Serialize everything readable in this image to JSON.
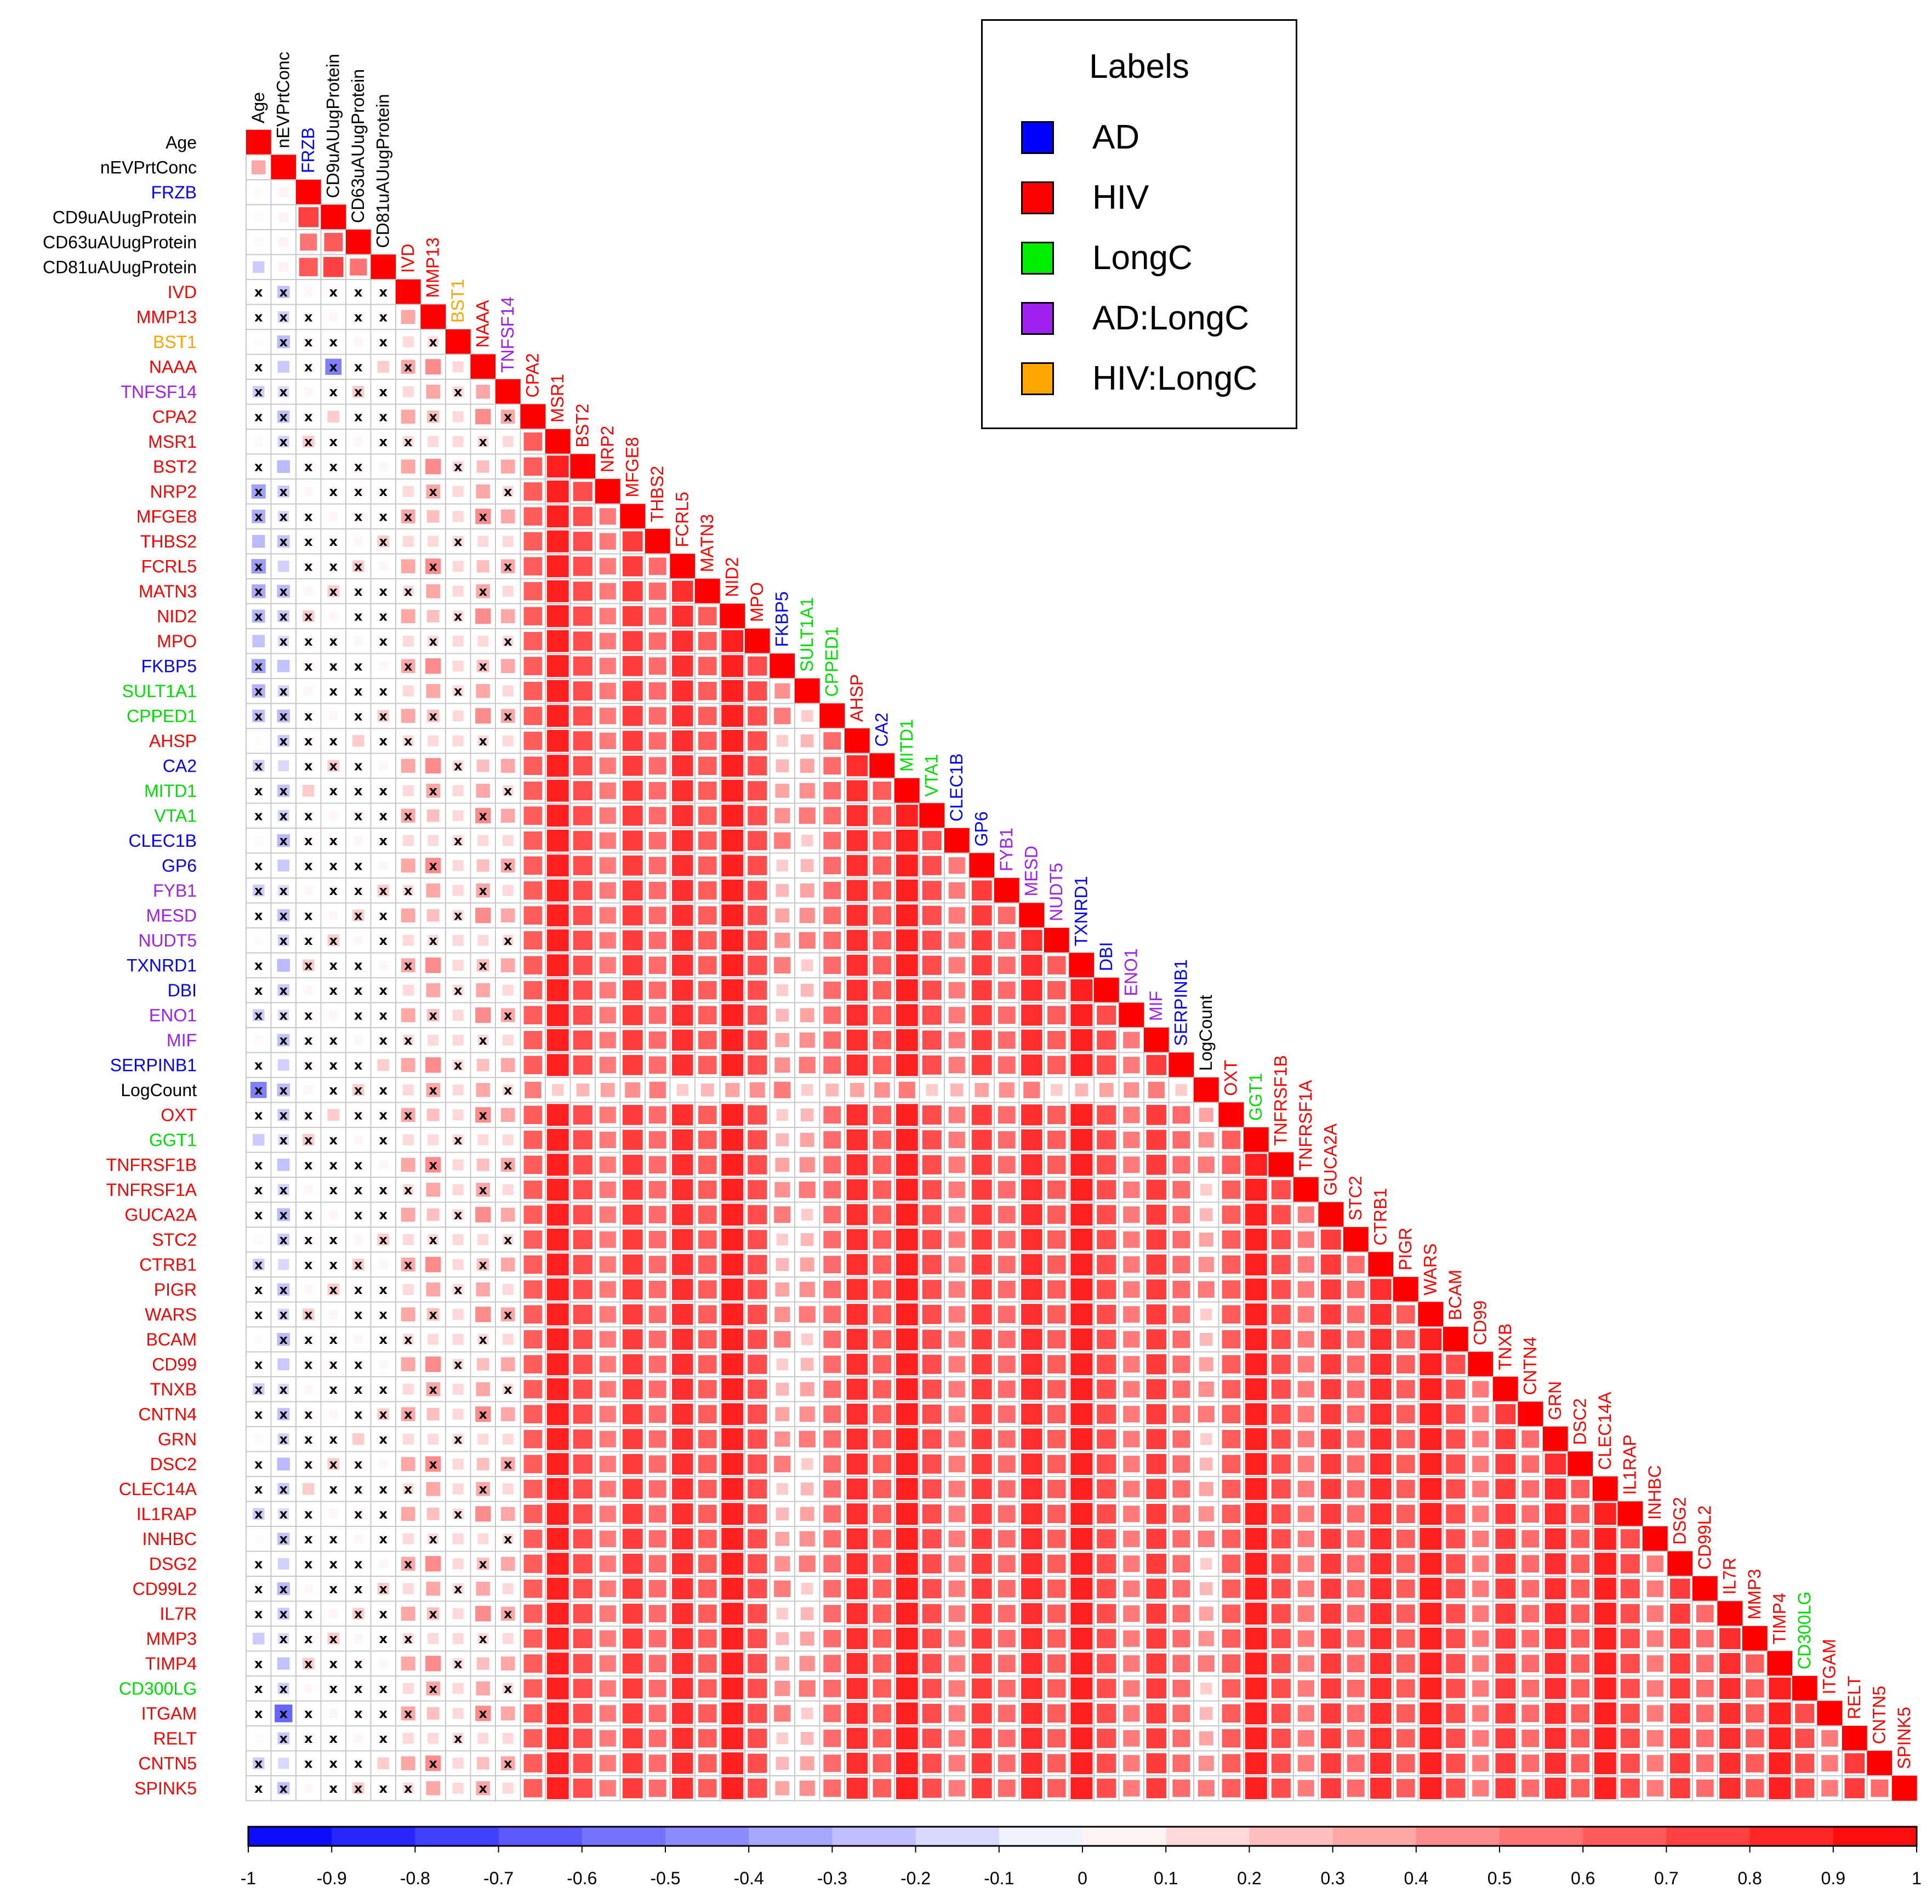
{
  "chart_data": {
    "type": "heatmap",
    "subtype": "lower-triangle correlation matrix",
    "variables": [
      "Age",
      "nEVPrtConc",
      "FRZB",
      "CD9uAUugProtein",
      "CD63uAUugProtein",
      "CD81uAUugProtein",
      "IVD",
      "MMP13",
      "BST1",
      "NAAA",
      "TNFSF14",
      "CPA2",
      "MSR1",
      "BST2",
      "NRP2",
      "MFGE8",
      "THBS2",
      "FCRL5",
      "MATN3",
      "NID2",
      "MPO",
      "FKBP5",
      "SULT1A1",
      "CPPED1",
      "AHSP",
      "CA2",
      "MITD1",
      "VTA1",
      "CLEC1B",
      "GP6",
      "FYB1",
      "MESD",
      "NUDT5",
      "TXNRD1",
      "DBI",
      "ENO1",
      "MIF",
      "SERPINB1",
      "LogCount",
      "OXT",
      "GGT1",
      "TNFRSF1B",
      "TNFRSF1A",
      "GUCA2A",
      "STC2",
      "CTRB1",
      "PIGR",
      "WARS",
      "BCAM",
      "CD99",
      "TNXB",
      "CNTN4",
      "GRN",
      "DSC2",
      "CLEC14A",
      "IL1RAP",
      "INHBC",
      "DSG2",
      "CD99L2",
      "IL7R",
      "MMP3",
      "TIMP4",
      "CD300LG",
      "ITGAM",
      "RELT",
      "CNTN5",
      "SPINK5"
    ],
    "variable_groups": [
      "none",
      "none",
      "AD",
      "none",
      "none",
      "none",
      "HIV",
      "HIV",
      "HIV:LongC",
      "HIV",
      "AD:LongC",
      "HIV",
      "HIV",
      "HIV",
      "HIV",
      "HIV",
      "HIV",
      "HIV",
      "HIV",
      "HIV",
      "HIV",
      "AD",
      "LongC",
      "LongC",
      "HIV",
      "AD",
      "LongC",
      "LongC",
      "AD",
      "AD",
      "AD:LongC",
      "AD:LongC",
      "AD:LongC",
      "AD",
      "AD",
      "AD:LongC",
      "AD:LongC",
      "AD",
      "none",
      "HIV",
      "LongC",
      "HIV",
      "HIV",
      "HIV",
      "HIV",
      "HIV",
      "HIV",
      "HIV",
      "HIV",
      "HIV",
      "HIV",
      "HIV",
      "HIV",
      "HIV",
      "HIV",
      "HIV",
      "HIV",
      "HIV",
      "HIV",
      "HIV",
      "HIV",
      "HIV",
      "LongC",
      "HIV",
      "HIV",
      "HIV",
      "HIV"
    ],
    "colorbar": {
      "min": -1,
      "max": 1,
      "ticks": [
        "-1",
        "-0.9",
        "-0.8",
        "-0.7",
        "-0.6",
        "-0.5",
        "-0.4",
        "-0.3",
        "-0.2",
        "-0.1",
        "0",
        "0.1",
        "0.2",
        "0.3",
        "0.4",
        "0.5",
        "0.6",
        "0.7",
        "0.8",
        "0.9",
        "1"
      ],
      "low_color": "#0000ff",
      "mid_color": "#ffffff",
      "high_color": "#ff0000"
    },
    "legend": {
      "title": "Labels",
      "placement": "top-right",
      "items": [
        {
          "label": "AD",
          "color": "#0000ff"
        },
        {
          "label": "HIV",
          "color": "#ff0000"
        },
        {
          "label": "LongC",
          "color": "#00ee00"
        },
        {
          "label": "AD:LongC",
          "color": "#a020f0"
        },
        {
          "label": "HIV:LongC",
          "color": "#ffa500"
        }
      ]
    },
    "group_colors": {
      "none": "#000000",
      "AD": "#0000ff",
      "HIV": "#ff0000",
      "LongC": "#00dd00",
      "AD:LongC": "#a020f0",
      "HIV:LongC": "#ffa500"
    },
    "not_significant_marker": "x",
    "correlation_estimate": {
      "Age_with_LogCount": -0.5,
      "Age_with_NRP2_to_CPPED1": -0.4,
      "nEVPrtConc_with_proteins": -0.3,
      "CD9uAUugProtein_with_NAAA": -0.5,
      "protein_block_typical": 0.7,
      "diagonal": 1
    }
  }
}
